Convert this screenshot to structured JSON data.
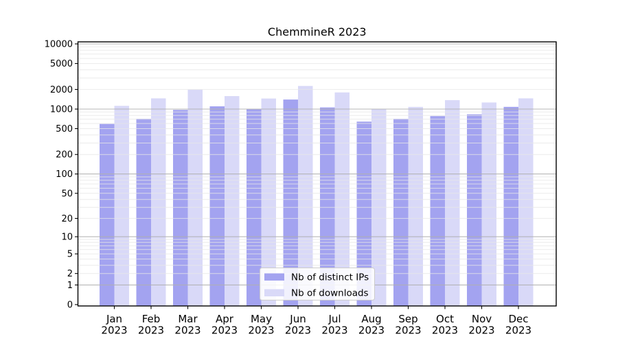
{
  "window": {
    "title": "ChemmineR 2023"
  },
  "chart_data": {
    "type": "bar",
    "title": "ChemmineR 2023",
    "categories": [
      "Jan",
      "Feb",
      "Mar",
      "Apr",
      "May",
      "Jun",
      "Jul",
      "Aug",
      "Sep",
      "Oct",
      "Nov",
      "Dec"
    ],
    "category_year": "2023",
    "series": [
      {
        "name": "Nb of distinct IPs",
        "color": "#a3a3f0",
        "values": [
          590,
          710,
          970,
          1100,
          990,
          1400,
          1060,
          640,
          710,
          780,
          830,
          1080
        ]
      },
      {
        "name": "Nb of downloads",
        "color": "#d9d9f8",
        "values": [
          1120,
          1460,
          1990,
          1580,
          1450,
          2260,
          1800,
          1000,
          1080,
          1370,
          1260,
          1460
        ]
      }
    ],
    "xlabel": "",
    "ylabel": "",
    "y_scale": {
      "type": "log10(value+1)",
      "min": 0,
      "max": 10000,
      "ticks": [
        0,
        1,
        2,
        5,
        10,
        20,
        50,
        100,
        200,
        500,
        1000,
        2000,
        5000,
        10000
      ]
    },
    "grid": {
      "on": true,
      "major_lines": [
        1,
        10,
        100,
        1000,
        10000
      ],
      "minor_multipliers": [
        2,
        3,
        4,
        5,
        6,
        7,
        8,
        9
      ],
      "major_color": "#b0b0b0",
      "minor_color": "#e7e7e7"
    },
    "legend": {
      "position": "lower center",
      "entries": [
        "Nb of distinct IPs",
        "Nb of downloads"
      ],
      "background": "#ffffff",
      "border_color": "#cccccc"
    },
    "colors": {
      "background": "#ffffff",
      "spine": "#000000",
      "text": "#000000"
    }
  }
}
